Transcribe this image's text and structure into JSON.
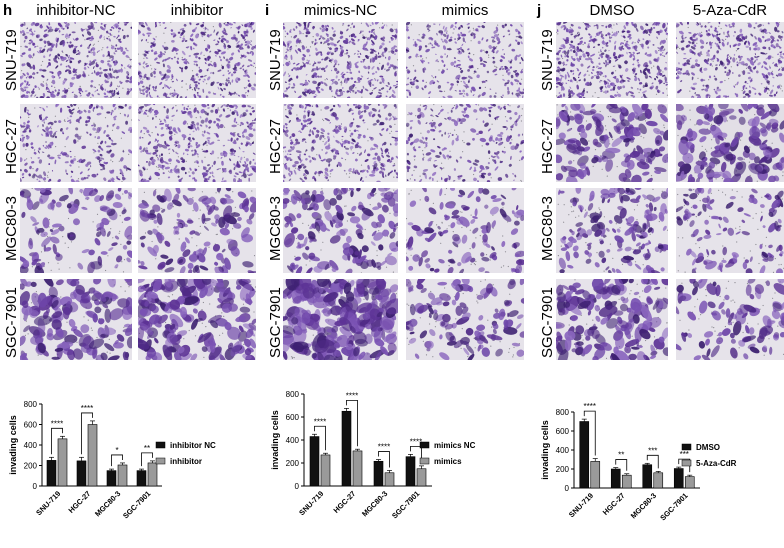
{
  "panels": [
    {
      "letter": "h",
      "columns": [
        "inhibitor-NC",
        "inhibitor"
      ]
    },
    {
      "letter": "i",
      "columns": [
        "mimics-NC",
        "mimics"
      ]
    },
    {
      "letter": "j",
      "columns": [
        "DMSO",
        "5-Aza-CdR"
      ]
    }
  ],
  "rows": [
    "SNU-719",
    "HGC-27",
    "MGC80-3",
    "SGC-7901"
  ],
  "colors": {
    "stain": "#6a3fa0",
    "background": "#e6e3ea",
    "bar_dark": "#111111",
    "bar_light": "#9a9a9a"
  },
  "chart_data": [
    {
      "type": "bar",
      "categories": [
        "SNU-719",
        "HGC-27",
        "MGC80-3",
        "SGC-7901"
      ],
      "ylabel": "invading cells",
      "ylim": [
        0,
        800
      ],
      "yticks": [
        0,
        200,
        400,
        600,
        800
      ],
      "series": [
        {
          "name": "inhibitor NC",
          "values": [
            250,
            245,
            150,
            150
          ],
          "errors": [
            30,
            35,
            15,
            15
          ]
        },
        {
          "name": "inhibitor",
          "values": [
            460,
            600,
            205,
            225
          ],
          "errors": [
            25,
            35,
            20,
            20
          ]
        }
      ],
      "significance": [
        "****",
        "****",
        "*",
        "**"
      ],
      "legend": "right"
    },
    {
      "type": "bar",
      "categories": [
        "SNU-719",
        "HGC-27",
        "MGC80-3",
        "SGC-7901"
      ],
      "ylabel": "invading cells",
      "ylim": [
        0,
        800
      ],
      "yticks": [
        0,
        200,
        400,
        600,
        800
      ],
      "series": [
        {
          "name": "mimics NC",
          "values": [
            430,
            650,
            215,
            255
          ],
          "errors": [
            20,
            25,
            15,
            20
          ]
        },
        {
          "name": "mimics",
          "values": [
            270,
            305,
            115,
            150
          ],
          "errors": [
            15,
            15,
            20,
            25
          ]
        }
      ],
      "significance": [
        "****",
        "****",
        "****",
        "****"
      ],
      "legend": "right"
    },
    {
      "type": "bar",
      "categories": [
        "SNU-719",
        "HGC-27",
        "MGC80-3",
        "SGC-7901"
      ],
      "ylabel": "invading cells",
      "ylim": [
        0,
        800
      ],
      "yticks": [
        0,
        200,
        400,
        600,
        800
      ],
      "series": [
        {
          "name": "DMSO",
          "values": [
            700,
            200,
            245,
            205
          ],
          "errors": [
            25,
            15,
            15,
            15
          ]
        },
        {
          "name": "5-Aza-CdR",
          "values": [
            280,
            135,
            160,
            120
          ],
          "errors": [
            30,
            15,
            15,
            15
          ]
        }
      ],
      "significance": [
        "****",
        "**",
        "***",
        "***"
      ],
      "legend": "right"
    }
  ]
}
